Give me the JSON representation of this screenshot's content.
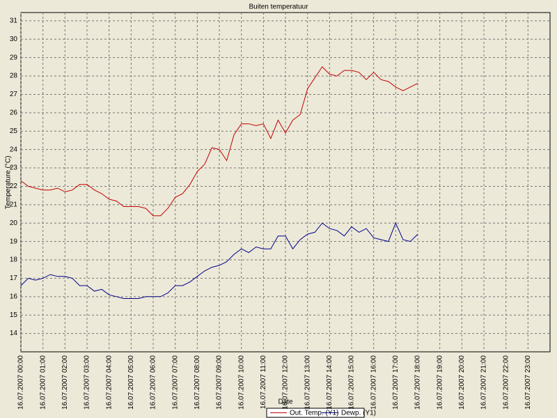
{
  "chart_data": {
    "type": "line",
    "title": "Buiten temperatuur",
    "x_label": "Date",
    "y_label": "Temperature (°C)",
    "x": [
      "16.07.2007 00:00",
      "16.07.2007 00:20",
      "16.07.2007 00:40",
      "16.07.2007 01:00",
      "16.07.2007 01:20",
      "16.07.2007 01:40",
      "16.07.2007 02:00",
      "16.07.2007 02:20",
      "16.07.2007 02:40",
      "16.07.2007 03:00",
      "16.07.2007 03:20",
      "16.07.2007 03:40",
      "16.07.2007 04:00",
      "16.07.2007 04:20",
      "16.07.2007 04:40",
      "16.07.2007 05:00",
      "16.07.2007 05:20",
      "16.07.2007 05:40",
      "16.07.2007 06:00",
      "16.07.2007 06:20",
      "16.07.2007 06:40",
      "16.07.2007 07:00",
      "16.07.2007 07:20",
      "16.07.2007 07:40",
      "16.07.2007 08:00",
      "16.07.2007 08:20",
      "16.07.2007 08:40",
      "16.07.2007 09:00",
      "16.07.2007 09:20",
      "16.07.2007 09:40",
      "16.07.2007 10:00",
      "16.07.2007 10:20",
      "16.07.2007 10:40",
      "16.07.2007 11:00",
      "16.07.2007 11:20",
      "16.07.2007 11:40",
      "16.07.2007 12:00",
      "16.07.2007 12:20",
      "16.07.2007 12:40",
      "16.07.2007 13:00",
      "16.07.2007 13:20",
      "16.07.2007 13:40",
      "16.07.2007 14:00",
      "16.07.2007 14:20",
      "16.07.2007 14:40",
      "16.07.2007 15:00",
      "16.07.2007 15:20",
      "16.07.2007 15:40",
      "16.07.2007 16:00",
      "16.07.2007 16:20",
      "16.07.2007 16:40",
      "16.07.2007 17:00",
      "16.07.2007 17:20",
      "16.07.2007 17:40",
      "16.07.2007 18:00"
    ],
    "series": [
      {
        "name": "Out. Temp. (Y1)",
        "color": "#c00000",
        "values": [
          22.3,
          22.0,
          21.9,
          21.8,
          21.8,
          21.9,
          21.7,
          21.8,
          22.1,
          22.1,
          21.8,
          21.6,
          21.3,
          21.2,
          20.9,
          20.9,
          20.9,
          20.8,
          20.4,
          20.4,
          20.8,
          21.4,
          21.6,
          22.1,
          22.8,
          23.2,
          24.1,
          24.0,
          23.4,
          24.8,
          25.4,
          25.4,
          25.3,
          25.4,
          24.6,
          25.6,
          24.9,
          25.6,
          25.9,
          27.3,
          27.9,
          28.5,
          28.1,
          28.0,
          28.3,
          28.3,
          28.2,
          27.8,
          28.2,
          27.8,
          27.7,
          27.4,
          27.2,
          27.4,
          27.6
        ]
      },
      {
        "name": "Dewp. (Y1)",
        "color": "#00008b",
        "values": [
          16.6,
          17.0,
          16.9,
          17.0,
          17.2,
          17.1,
          17.1,
          17.0,
          16.6,
          16.6,
          16.3,
          16.4,
          16.1,
          16.0,
          15.9,
          15.9,
          15.9,
          16.0,
          16.0,
          16.0,
          16.2,
          16.6,
          16.6,
          16.8,
          17.1,
          17.4,
          17.6,
          17.7,
          17.9,
          18.3,
          18.6,
          18.4,
          18.7,
          18.6,
          18.6,
          19.3,
          19.3,
          18.6,
          19.1,
          19.4,
          19.5,
          20.0,
          19.7,
          19.6,
          19.3,
          19.8,
          19.5,
          19.7,
          19.2,
          19.1,
          19.0,
          20.0,
          19.1,
          19.0,
          19.4
        ]
      }
    ],
    "xlim": [
      "16.07.2007 00:00",
      "17.07.2007 00:00"
    ],
    "xticks": [
      "16.07.2007 00:00",
      "16.07.2007 01:00",
      "16.07.2007 02:00",
      "16.07.2007 03:00",
      "16.07.2007 04:00",
      "16.07.2007 05:00",
      "16.07.2007 06:00",
      "16.07.2007 07:00",
      "16.07.2007 08:00",
      "16.07.2007 09:00",
      "16.07.2007 10:00",
      "16.07.2007 11:00",
      "16.07.2007 12:00",
      "16.07.2007 13:00",
      "16.07.2007 14:00",
      "16.07.2007 15:00",
      "16.07.2007 16:00",
      "16.07.2007 17:00",
      "16.07.2007 18:00",
      "16.07.2007 19:00",
      "16.07.2007 20:00",
      "16.07.2007 21:00",
      "16.07.2007 22:00",
      "16.07.2007 23:00"
    ],
    "ylim": [
      13,
      31.45
    ],
    "yticks": [
      14,
      15,
      16,
      17,
      18,
      19,
      20,
      21,
      22,
      23,
      24,
      25,
      26,
      27,
      28,
      29,
      30,
      31
    ],
    "grid": true
  }
}
